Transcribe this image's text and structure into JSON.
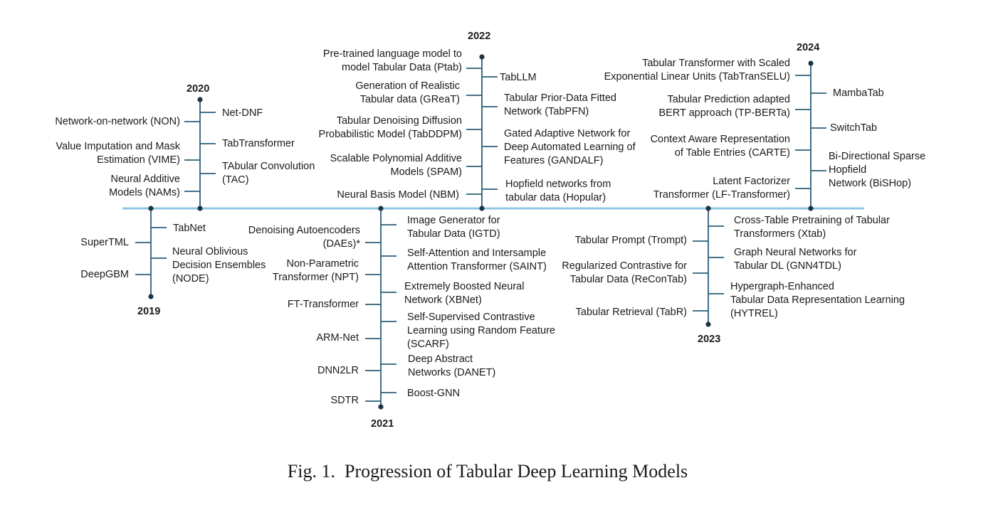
{
  "caption": "Fig. 1.  Progression of Tabular Deep Learning Models",
  "colors": {
    "axis": "#8fc6e4",
    "stem": "#2c5d78",
    "dot": "#1b3342"
  },
  "years": {
    "y2019": {
      "year": "2019",
      "left": [
        "SuperTML",
        "DeepGBM"
      ],
      "right": [
        "TabNet",
        "Neural Oblivious\nDecision Ensembles\n(NODE)"
      ]
    },
    "y2020": {
      "year": "2020",
      "left": [
        "Network-on-network (NON)",
        "Value Imputation and Mask\nEstimation (VIME)",
        "Neural Additive\nModels (NAMs)"
      ],
      "right": [
        "Net-DNF",
        "TabTransformer",
        "TAbular Convolution\n(TAC)"
      ]
    },
    "y2021": {
      "year": "2021",
      "left": [
        "Denoising Autoencoders\n(DAEs)*",
        "Non-Parametric\nTransformer (NPT)",
        "FT-Transformer",
        "ARM-Net",
        "DNN2LR",
        "SDTR"
      ],
      "right": [
        "Image Generator for\nTabular Data (IGTD)",
        "Self-Attention and Intersample\nAttention Transformer (SAINT)",
        "Extremely Boosted Neural\nNetwork (XBNet)",
        "Self-Supervised Contrastive\nLearning using Random Feature\n(SCARF)",
        "Deep Abstract\nNetworks (DANET)",
        "Boost-GNN"
      ]
    },
    "y2022": {
      "year": "2022",
      "left": [
        "Pre-trained language model to\nmodel Tabular Data (Ptab)",
        "Generation of Realistic\nTabular data (GReaT)",
        "Tabular Denoising Diffusion\nProbabilistic Model (TabDDPM)",
        "Scalable Polynomial Additive\nModels (SPAM)",
        "Neural Basis Model (NBM)"
      ],
      "right": [
        "TabLLM",
        "Tabular Prior-Data Fitted\nNetwork (TabPFN)",
        "Gated Adaptive Network for\nDeep Automated Learning of\nFeatures (GANDALF)",
        "Hopfield networks from\ntabular data (Hopular)"
      ]
    },
    "y2023": {
      "year": "2023",
      "left": [
        "Tabular Prompt (Trompt)",
        "Regularized Contrastive for\nTabular Data (ReConTab)",
        "Tabular Retrieval (TabR)"
      ],
      "right": [
        "Cross-Table Pretraining of Tabular\nTransformers (Xtab)",
        "Graph Neural Networks for\nTabular DL (GNN4TDL)",
        "Hypergraph-Enhanced\nTabular Data Representation Learning\n(HYTREL)"
      ]
    },
    "y2024": {
      "year": "2024",
      "left": [
        "Tabular Transformer with Scaled\nExponential Linear Units (TabTranSELU)",
        "Tabular Prediction adapted\nBERT approach (TP-BERTa)",
        "Context Aware Representation\nof Table Entries (CARTE)",
        "Latent Factorizer\nTransformer (LF-Transformer)"
      ],
      "right": [
        "MambaTab",
        "SwitchTab",
        "Bi-Directional Sparse\nHopfield\nNetwork (BiSHop)"
      ]
    }
  }
}
